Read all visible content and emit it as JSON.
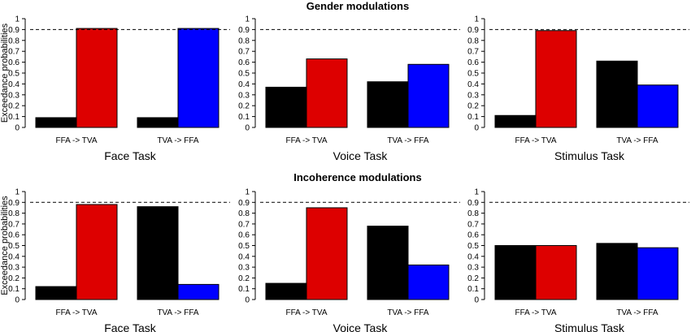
{
  "colors": {
    "baseline_bar": "#000000",
    "ffa_to_tva_bar": "#dd0000",
    "tva_to_ffa_bar": "#0000ff",
    "threshold_line": "#000000"
  },
  "rows": [
    {
      "title": "Gender modulations"
    },
    {
      "title": "Incoherence modulations"
    }
  ],
  "chart_data": [
    {
      "type": "bar",
      "row": 0,
      "col": 0,
      "title": "",
      "xlabel": "Face Task",
      "ylabel": "Exceedance probabilities",
      "categories": [
        "FFA -> TVA",
        "TVA -> FFA"
      ],
      "values": [
        [
          0.09,
          0.91
        ],
        [
          0.09,
          0.91
        ]
      ],
      "highlight_color": [
        "#dd0000",
        "#0000ff"
      ],
      "ylim": [
        0,
        1
      ],
      "yticks": [
        "0",
        "0.1",
        "0.2",
        "0.3",
        "0.4",
        "0.5",
        "0.6",
        "0.7",
        "0.8",
        "0.9",
        "1"
      ],
      "threshold": 0.9,
      "grid": false
    },
    {
      "type": "bar",
      "row": 0,
      "col": 1,
      "title": "",
      "xlabel": "Voice Task",
      "ylabel": "",
      "categories": [
        "FFA -> TVA",
        "TVA -> FFA"
      ],
      "values": [
        [
          0.37,
          0.63
        ],
        [
          0.42,
          0.58
        ]
      ],
      "highlight_color": [
        "#dd0000",
        "#0000ff"
      ],
      "ylim": [
        0,
        1
      ],
      "yticks": [
        "0",
        "0.1",
        "0.2",
        "0.3",
        "0.4",
        "0.5",
        "0.6",
        "0.7",
        "0.8",
        "0.9",
        "1"
      ],
      "threshold": 0.9,
      "grid": false
    },
    {
      "type": "bar",
      "row": 0,
      "col": 2,
      "title": "",
      "xlabel": "Stimulus Task",
      "ylabel": "",
      "categories": [
        "FFA -> TVA",
        "TVA -> FFA"
      ],
      "values": [
        [
          0.11,
          0.89
        ],
        [
          0.61,
          0.39
        ]
      ],
      "highlight_color": [
        "#dd0000",
        "#0000ff"
      ],
      "ylim": [
        0,
        1
      ],
      "yticks": [
        "0",
        "0.1",
        "0.2",
        "0.3",
        "0.4",
        "0.5",
        "0.6",
        "0.7",
        "0.8",
        "0.9",
        "1"
      ],
      "threshold": 0.9,
      "grid": false
    },
    {
      "type": "bar",
      "row": 1,
      "col": 0,
      "title": "",
      "xlabel": "Face Task",
      "ylabel": "Exceedance probabilities",
      "categories": [
        "FFA -> TVA",
        "TVA -> FFA"
      ],
      "values": [
        [
          0.12,
          0.88
        ],
        [
          0.86,
          0.14
        ]
      ],
      "highlight_color": [
        "#dd0000",
        "#0000ff"
      ],
      "ylim": [
        0,
        1
      ],
      "yticks": [
        "0",
        "0.1",
        "0.2",
        "0.3",
        "0.4",
        "0.5",
        "0.6",
        "0.7",
        "0.8",
        "0.9",
        "1"
      ],
      "threshold": 0.9,
      "grid": false
    },
    {
      "type": "bar",
      "row": 1,
      "col": 1,
      "title": "",
      "xlabel": "Voice Task",
      "ylabel": "",
      "categories": [
        "FFA -> TVA",
        "TVA -> FFA"
      ],
      "values": [
        [
          0.15,
          0.85
        ],
        [
          0.68,
          0.32
        ]
      ],
      "highlight_color": [
        "#dd0000",
        "#0000ff"
      ],
      "ylim": [
        0,
        1
      ],
      "yticks": [
        "0",
        "0.1",
        "0.2",
        "0.3",
        "0.4",
        "0.5",
        "0.6",
        "0.7",
        "0.8",
        "0.9",
        "1"
      ],
      "threshold": 0.9,
      "grid": false
    },
    {
      "type": "bar",
      "row": 1,
      "col": 2,
      "title": "",
      "xlabel": "Stimulus Task",
      "ylabel": "",
      "categories": [
        "FFA -> TVA",
        "TVA -> FFA"
      ],
      "values": [
        [
          0.5,
          0.5
        ],
        [
          0.52,
          0.48
        ]
      ],
      "highlight_color": [
        "#dd0000",
        "#0000ff"
      ],
      "ylim": [
        0,
        1
      ],
      "yticks": [
        "0",
        "0.1",
        "0.2",
        "0.3",
        "0.4",
        "0.5",
        "0.6",
        "0.7",
        "0.8",
        "0.9",
        "1"
      ],
      "threshold": 0.9,
      "grid": false
    }
  ]
}
